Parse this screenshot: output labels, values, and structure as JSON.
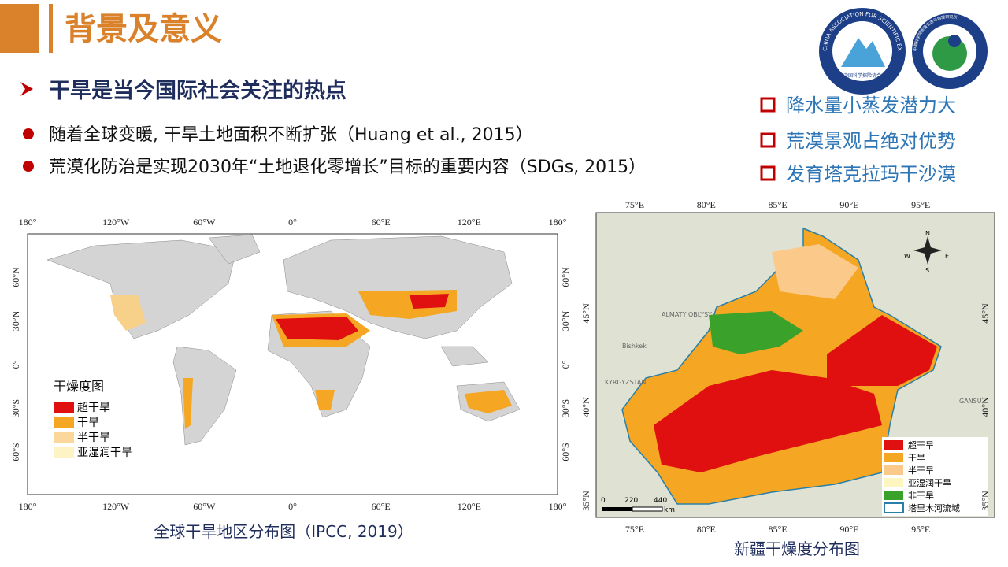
{
  "header": {
    "title": "背景及意义"
  },
  "logos": [
    {
      "text": "CHINA ASSOCIATION FOR SCIENTIFIC EXPEDITION",
      "subtext": "中国科学探险协会"
    },
    {
      "text": "中国科学院新疆生态与地理研究所"
    }
  ],
  "heading": "干旱是当今国际社会关注的热点",
  "bullets": [
    "随着全球变暖, 干旱土地面积不断扩张（Huang et al., 2015）",
    "荒漠化防治是实现2030年“土地退化零增长”目标的重要内容（SDGs, 2015）"
  ],
  "highlights": [
    "降水量小蒸发潜力大",
    "荒漠景观占绝对优势",
    "发育塔克拉玛干沙漠"
  ],
  "global_map": {
    "longitude_labels": [
      "180°",
      "120°W",
      "60°W",
      "0°",
      "60°E",
      "120°E",
      "180°"
    ],
    "latitude_labels": [
      "60°N",
      "30°N",
      "0°",
      "30°S",
      "60°S"
    ],
    "legend": {
      "title": "干燥度图",
      "items": [
        "超干旱",
        "干旱",
        "半干旱",
        "亚湿润干旱"
      ]
    },
    "caption": "全球干旱地区分布图（IPCC, 2019）"
  },
  "xinjiang_map": {
    "longitude_labels": [
      "75°E",
      "80°E",
      "85°E",
      "90°E",
      "95°E"
    ],
    "latitude_labels": [
      "45°N",
      "40°N",
      "35°N"
    ],
    "place_names": [
      "ALMATY OBLYSY",
      "Bishkek",
      "KYRGYZSTAN",
      "GANSU"
    ],
    "compass": [
      "N",
      "S",
      "E",
      "W"
    ],
    "scale_bar": [
      "0",
      "220",
      "440",
      "km"
    ],
    "legend": [
      "超干旱",
      "干旱",
      "半干旱",
      "亚湿润干旱",
      "非干旱",
      "塔里木河流域"
    ],
    "caption": "新疆干燥度分布图"
  }
}
